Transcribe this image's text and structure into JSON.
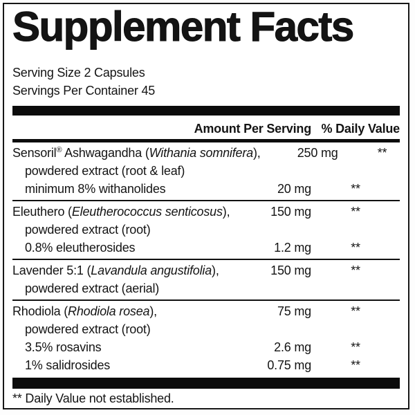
{
  "title": "Supplement Facts",
  "serving": {
    "size": "Serving Size 2 Capsules",
    "per_container": "Servings Per Container 45"
  },
  "table": {
    "columns": {
      "amount": "Amount Per Serving",
      "daily_value": "% Daily Value"
    },
    "groups": [
      {
        "lines": [
          {
            "indent": false,
            "prefix": "Sensoril® Ashwagandha (",
            "latin": "Withania somnifera",
            "after": "),",
            "amount": "250 mg",
            "dv": "**"
          },
          {
            "indent": true,
            "prefix": "powdered extract (root & leaf)",
            "latin": "",
            "after": "",
            "amount": "",
            "dv": ""
          },
          {
            "indent": true,
            "prefix": "minimum 8% withanolides",
            "latin": "",
            "after": "",
            "amount": "20 mg",
            "dv": "**"
          }
        ]
      },
      {
        "lines": [
          {
            "indent": false,
            "prefix": "Eleuthero (",
            "latin": "Eleutherococcus senticosus",
            "after": "),",
            "amount": "150 mg",
            "dv": "**"
          },
          {
            "indent": true,
            "prefix": "powdered extract (root)",
            "latin": "",
            "after": "",
            "amount": "",
            "dv": ""
          },
          {
            "indent": true,
            "prefix": "0.8% eleutherosides",
            "latin": "",
            "after": "",
            "amount": "1.2 mg",
            "dv": "**"
          }
        ]
      },
      {
        "lines": [
          {
            "indent": false,
            "prefix": "Lavender 5:1 (",
            "latin": "Lavandula angustifolia",
            "after": "),",
            "amount": "150 mg",
            "dv": "**"
          },
          {
            "indent": true,
            "prefix": "powdered extract (aerial)",
            "latin": "",
            "after": "",
            "amount": "",
            "dv": ""
          }
        ]
      },
      {
        "lines": [
          {
            "indent": false,
            "prefix": "Rhodiola (",
            "latin": "Rhodiola rosea",
            "after": "),",
            "amount": "75 mg",
            "dv": "**"
          },
          {
            "indent": true,
            "prefix": "powdered extract (root)",
            "latin": "",
            "after": "",
            "amount": "",
            "dv": ""
          },
          {
            "indent": true,
            "prefix": "3.5% rosavins",
            "latin": "",
            "after": "",
            "amount": "2.6 mg",
            "dv": "**"
          },
          {
            "indent": true,
            "prefix": "1% salidrosides",
            "latin": "",
            "after": "",
            "amount": "0.75 mg",
            "dv": "**"
          }
        ]
      }
    ]
  },
  "footnote": "** Daily Value not established.",
  "colors": {
    "ink": "#141414",
    "bar": "#0c0c0c",
    "background": "#ffffff"
  }
}
